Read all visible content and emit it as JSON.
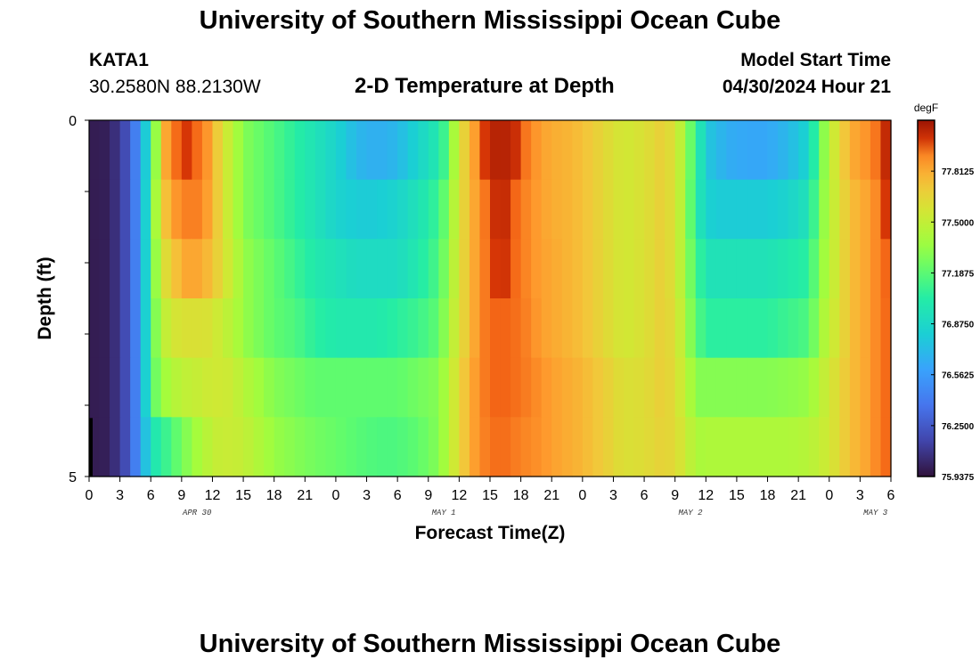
{
  "header": {
    "title": "University of Southern Mississippi Ocean Cube",
    "station": "KATA1",
    "coordinates": "30.2580N  88.2130W",
    "product": "2-D Temperature at Depth",
    "start_label": "Model Start Time",
    "start_value": "04/30/2024 Hour 21"
  },
  "footer": {
    "title": "University of Southern Mississippi Ocean Cube"
  },
  "chart_data": {
    "type": "heatmap",
    "title": "2-D Temperature at Depth",
    "xlabel": "Forecast Time(Z)",
    "ylabel": "Depth (ft)",
    "units": "degF",
    "x_tick_labels": [
      "0",
      "3",
      "6",
      "9",
      "12",
      "15",
      "18",
      "21",
      "0",
      "3",
      "6",
      "9",
      "12",
      "15",
      "18",
      "21",
      "0",
      "3",
      "6",
      "9",
      "12",
      "15",
      "18",
      "21",
      "0",
      "3",
      "6"
    ],
    "day_labels": [
      {
        "label": "APR 30",
        "hour_index": 10.5
      },
      {
        "label": "MAY 1",
        "hour_index": 34.5
      },
      {
        "label": "MAY 2",
        "hour_index": 58.5
      },
      {
        "label": "MAY 3",
        "hour_index": 76.5
      }
    ],
    "y_tick_labels": [
      "0",
      "5"
    ],
    "ylim": [
      0,
      5
    ],
    "xlim_hours": [
      0,
      78
    ],
    "colorbar_labels": [
      "77.8125",
      "77.5000",
      "77.1875",
      "76.8750",
      "76.5625",
      "76.2500",
      "75.9375"
    ],
    "colorbar_range": [
      75.9375,
      78.125
    ],
    "depth_layers": [
      0,
      1,
      2,
      3,
      4,
      5
    ],
    "time_nodes_hours": [
      0,
      2,
      4,
      5,
      6,
      6.5,
      7,
      8,
      9,
      10,
      11,
      12,
      13,
      14,
      15,
      16,
      17,
      18,
      20,
      22,
      24,
      26,
      28,
      30,
      32,
      34,
      35,
      36,
      37,
      38,
      39,
      40,
      41,
      42,
      43,
      44,
      45,
      46,
      48,
      50,
      52,
      54,
      56,
      58,
      59,
      60,
      60.5,
      61,
      62,
      64,
      66,
      68,
      70,
      71,
      72,
      73,
      74,
      76,
      77,
      78
    ],
    "temperatures_degF": [
      [
        75.98,
        76.0,
        76.25,
        76.6,
        77.0,
        77.35,
        77.7,
        77.95,
        78.0,
        78.0,
        77.95,
        77.8,
        77.6,
        77.45,
        77.3,
        77.25,
        77.2,
        77.15,
        77.05,
        76.95,
        76.85,
        76.7,
        76.65,
        76.7,
        76.85,
        77.0,
        77.2,
        77.6,
        77.75,
        77.95,
        78.05,
        78.08,
        78.05,
        78.0,
        77.9,
        77.85,
        77.8,
        77.8,
        77.75,
        77.65,
        77.55,
        77.6,
        77.7,
        77.4,
        77.05,
        76.85,
        76.75,
        76.72,
        76.65,
        76.62,
        76.62,
        76.7,
        76.85,
        77.2,
        77.45,
        77.65,
        77.8,
        77.9,
        78.0,
        78.08
      ],
      [
        75.98,
        76.0,
        76.25,
        76.6,
        77.05,
        77.4,
        77.65,
        77.85,
        77.9,
        77.95,
        77.9,
        77.8,
        77.6,
        77.45,
        77.3,
        77.25,
        77.2,
        77.15,
        77.05,
        76.95,
        76.85,
        76.8,
        76.8,
        76.85,
        76.95,
        77.1,
        77.3,
        77.6,
        77.75,
        77.9,
        78.0,
        78.05,
        78.02,
        77.95,
        77.88,
        77.85,
        77.8,
        77.8,
        77.75,
        77.65,
        77.55,
        77.6,
        77.7,
        77.4,
        77.0,
        76.88,
        76.82,
        76.8,
        76.8,
        76.8,
        76.8,
        76.85,
        76.95,
        77.25,
        77.45,
        77.6,
        77.75,
        77.85,
        77.95,
        78.05
      ],
      [
        75.98,
        76.0,
        76.25,
        76.6,
        77.05,
        77.35,
        77.55,
        77.7,
        77.8,
        77.85,
        77.8,
        77.75,
        77.6,
        77.5,
        77.35,
        77.3,
        77.25,
        77.2,
        77.1,
        77.0,
        76.95,
        76.9,
        76.9,
        76.9,
        77.0,
        77.15,
        77.35,
        77.6,
        77.75,
        77.9,
        77.98,
        78.02,
        78.0,
        77.95,
        77.88,
        77.85,
        77.82,
        77.8,
        77.75,
        77.65,
        77.55,
        77.6,
        77.7,
        77.4,
        77.1,
        77.0,
        76.95,
        76.95,
        76.95,
        76.95,
        76.95,
        77.0,
        77.05,
        77.3,
        77.45,
        77.6,
        77.75,
        77.85,
        77.95,
        78.02
      ],
      [
        75.98,
        76.0,
        76.25,
        76.6,
        77.05,
        77.3,
        77.45,
        77.55,
        77.6,
        77.6,
        77.6,
        77.58,
        77.5,
        77.45,
        77.35,
        77.3,
        77.25,
        77.2,
        77.15,
        77.05,
        77.0,
        77.0,
        77.0,
        77.05,
        77.1,
        77.2,
        77.4,
        77.6,
        77.75,
        77.9,
        77.98,
        78.0,
        77.98,
        77.95,
        77.9,
        77.85,
        77.82,
        77.8,
        77.75,
        77.65,
        77.55,
        77.6,
        77.7,
        77.45,
        77.15,
        77.1,
        77.05,
        77.05,
        77.05,
        77.05,
        77.05,
        77.1,
        77.15,
        77.35,
        77.5,
        77.6,
        77.75,
        77.85,
        77.95,
        78.0
      ],
      [
        75.98,
        76.0,
        76.25,
        76.6,
        77.05,
        77.25,
        77.35,
        77.42,
        77.48,
        77.5,
        77.52,
        77.55,
        77.55,
        77.52,
        77.45,
        77.4,
        77.35,
        77.3,
        77.25,
        77.2,
        77.2,
        77.2,
        77.2,
        77.2,
        77.25,
        77.3,
        77.45,
        77.65,
        77.8,
        77.9,
        77.98,
        78.0,
        77.98,
        77.95,
        77.92,
        77.88,
        77.85,
        77.82,
        77.78,
        77.7,
        77.6,
        77.62,
        77.7,
        77.5,
        77.3,
        77.3,
        77.3,
        77.3,
        77.3,
        77.3,
        77.3,
        77.32,
        77.35,
        77.45,
        77.55,
        77.65,
        77.75,
        77.85,
        77.95,
        78.0
      ],
      [
        75.98,
        76.0,
        76.25,
        76.6,
        76.9,
        77.0,
        77.05,
        77.15,
        77.25,
        77.35,
        77.42,
        77.5,
        77.52,
        77.52,
        77.5,
        77.45,
        77.4,
        77.35,
        77.3,
        77.25,
        77.22,
        77.18,
        77.15,
        77.15,
        77.2,
        77.3,
        77.45,
        77.65,
        77.8,
        77.9,
        77.95,
        77.98,
        77.95,
        77.92,
        77.9,
        77.88,
        77.85,
        77.82,
        77.78,
        77.7,
        77.6,
        77.62,
        77.68,
        77.55,
        77.4,
        77.42,
        77.42,
        77.42,
        77.42,
        77.42,
        77.42,
        77.42,
        77.45,
        77.5,
        77.55,
        77.65,
        77.75,
        77.85,
        77.95,
        78.0
      ]
    ]
  }
}
